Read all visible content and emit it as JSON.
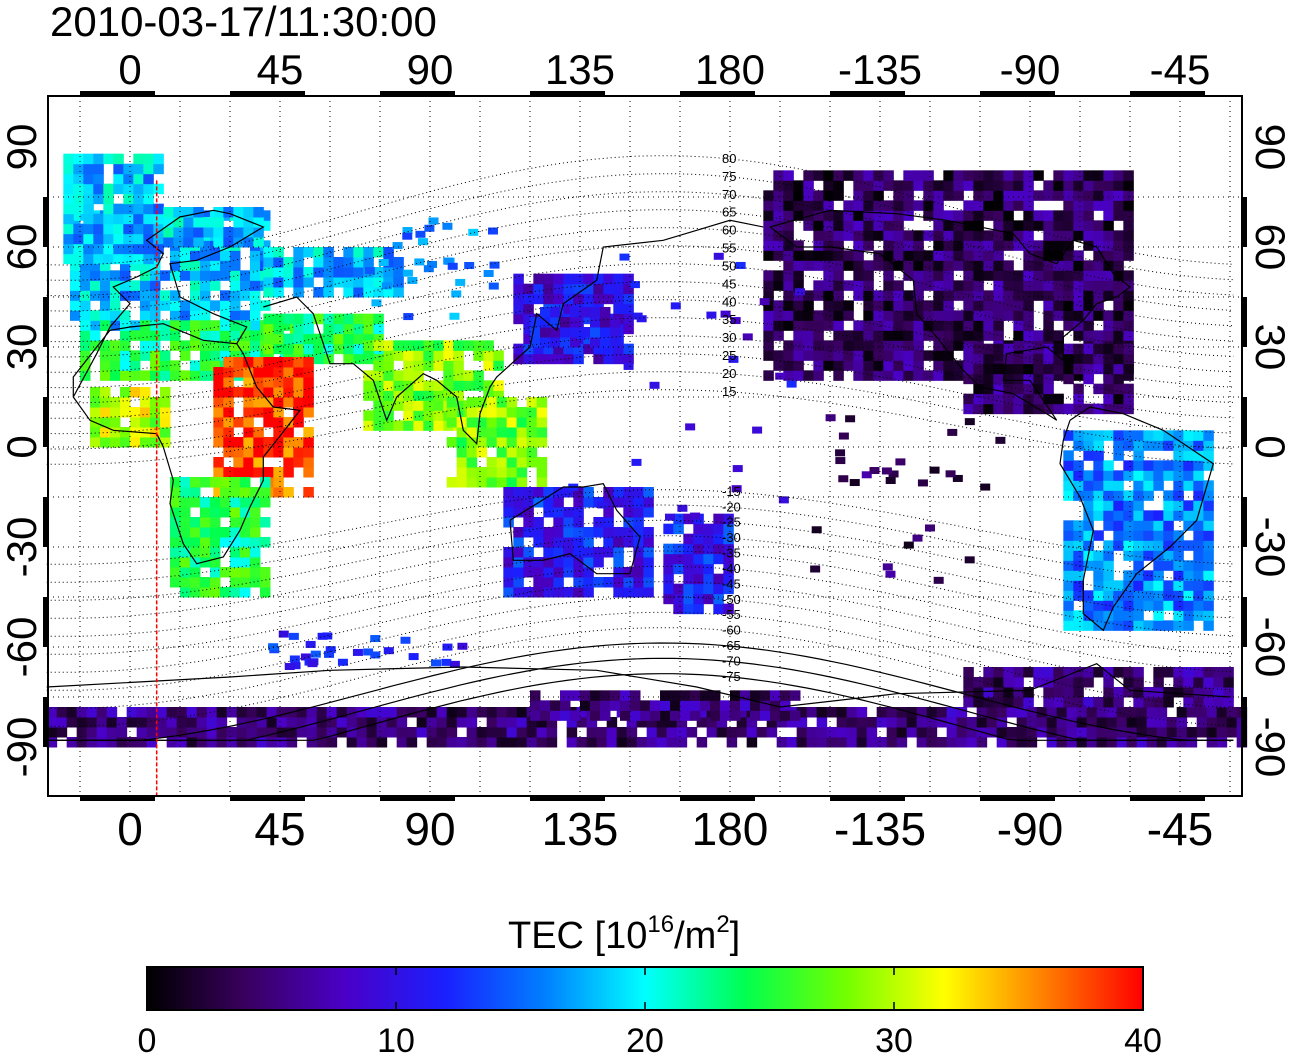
{
  "title": "2010-03-17/11:30:00",
  "map": {
    "lon_ticks": [
      "0",
      "45",
      "90",
      "135",
      "180",
      "-135",
      "-90",
      "-45"
    ],
    "lat_ticks": [
      "90",
      "60",
      "30",
      "0",
      "-30",
      "-60",
      "-90"
    ],
    "terminator_longitude": 8,
    "mlat_labels": [
      "80",
      "75",
      "70",
      "65",
      "60",
      "55",
      "50",
      "45",
      "40",
      "35",
      "30",
      "25",
      "20",
      "15",
      "-15",
      "-20",
      "-25",
      "-30",
      "-35",
      "-40",
      "-45",
      "-50",
      "-55",
      "-60",
      "-65",
      "-70",
      "-75"
    ]
  },
  "colorbar": {
    "title_main": "TEC  [10",
    "title_sup1": "16",
    "title_mid": "/m",
    "title_sup2": "2",
    "title_end": "]",
    "ticks": [
      "0",
      "10",
      "20",
      "30",
      "40"
    ],
    "range": [
      0,
      40
    ],
    "colors": [
      "#000000",
      "#3a0060",
      "#4a00c8",
      "#1a20ff",
      "#0080ff",
      "#00ffff",
      "#00ff50",
      "#70ff00",
      "#ffff00",
      "#ff8000",
      "#ff0000"
    ]
  },
  "tec_regions": [
    {
      "name": "europe",
      "tec": 18
    },
    {
      "name": "north-africa-mediterranean",
      "tec": 24
    },
    {
      "name": "east-africa",
      "tec": 38
    },
    {
      "name": "west-africa",
      "tec": 30
    },
    {
      "name": "southern-africa",
      "tec": 24
    },
    {
      "name": "india-southeast-asia",
      "tec": 28
    },
    {
      "name": "japan-china",
      "tec": 10
    },
    {
      "name": "australia",
      "tec": 11
    },
    {
      "name": "north-america",
      "tec": 4
    },
    {
      "name": "south-america",
      "tec": 16
    },
    {
      "name": "antarctica",
      "tec": 5
    }
  ]
}
